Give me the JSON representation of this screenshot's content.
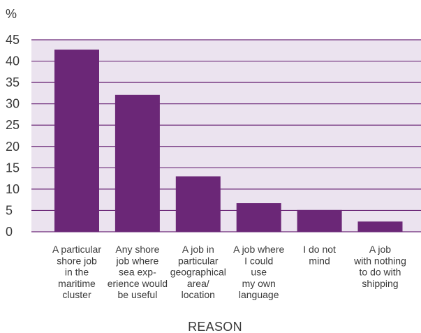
{
  "chart_data": {
    "type": "bar",
    "ylabel": "%",
    "xlabel": "REASON",
    "ylim": [
      0,
      45
    ],
    "yticks": [
      0,
      5,
      10,
      15,
      20,
      25,
      30,
      35,
      40,
      45
    ],
    "categories": [
      [
        "A particular",
        "shore job",
        "in the",
        "maritime",
        "cluster"
      ],
      [
        "Any shore",
        "job where",
        "sea exp-",
        "erience would",
        "be useful"
      ],
      [
        "A job in",
        "particular",
        "geographical",
        "area/",
        "location"
      ],
      [
        "A job where",
        "I could",
        "use",
        "my own",
        "language"
      ],
      [
        "I do not",
        "mind"
      ],
      [
        "A job",
        "with nothing",
        "to do with",
        "shipping"
      ]
    ],
    "values": [
      42.7,
      32.1,
      13.0,
      6.7,
      5.1,
      2.4
    ],
    "grid": true
  },
  "colors": {
    "bar": "#6b2777",
    "gridline": "#6b2777",
    "plot_background": "#ebe3ef",
    "text": "#3a3a3a"
  }
}
